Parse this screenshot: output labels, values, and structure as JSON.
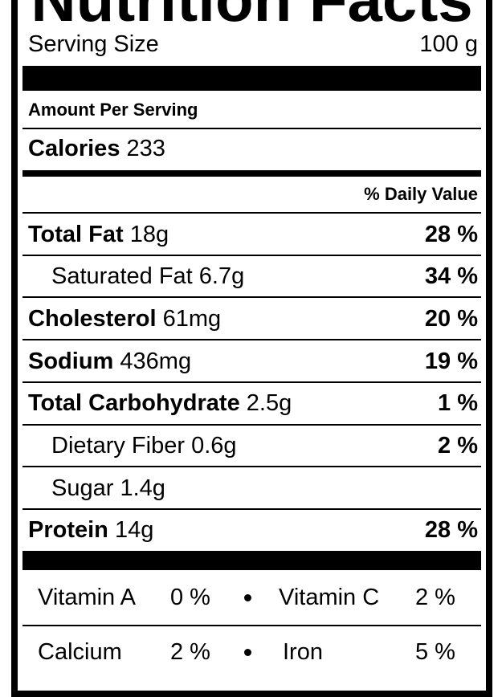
{
  "header": {
    "title": "Nutrition Facts"
  },
  "serving": {
    "label": "Serving Size",
    "value": "100 g"
  },
  "amount_per_serving": "Amount Per Serving",
  "calories": {
    "label": "Calories",
    "value": "233"
  },
  "daily_value_header": "% Daily Value",
  "nutrients": [
    {
      "name": "Total Fat",
      "amount": "18g",
      "dv": "28 %"
    },
    {
      "name": "Saturated Fat",
      "amount": "6.7g",
      "dv": "34 %"
    },
    {
      "name": "Cholesterol",
      "amount": "61mg",
      "dv": "20 %"
    },
    {
      "name": "Sodium",
      "amount": "436mg",
      "dv": "19 %"
    },
    {
      "name": "Total Carbohydrate",
      "amount": "2.5g",
      "dv": "1 %"
    },
    {
      "name": "Dietary Fiber",
      "amount": "0.6g",
      "dv": "2 %"
    },
    {
      "name": "Sugar",
      "amount": "1.4g"
    },
    {
      "name": "Protein",
      "amount": "14g",
      "dv": "28 %"
    }
  ],
  "vitamins": [
    [
      {
        "name": "Vitamin A",
        "dv": "0 %"
      },
      {
        "name": "Vitamin C",
        "dv": "2 %"
      }
    ],
    [
      {
        "name": "Calcium",
        "dv": "2 %"
      },
      {
        "name": "Iron",
        "dv": "5 %"
      }
    ]
  ]
}
